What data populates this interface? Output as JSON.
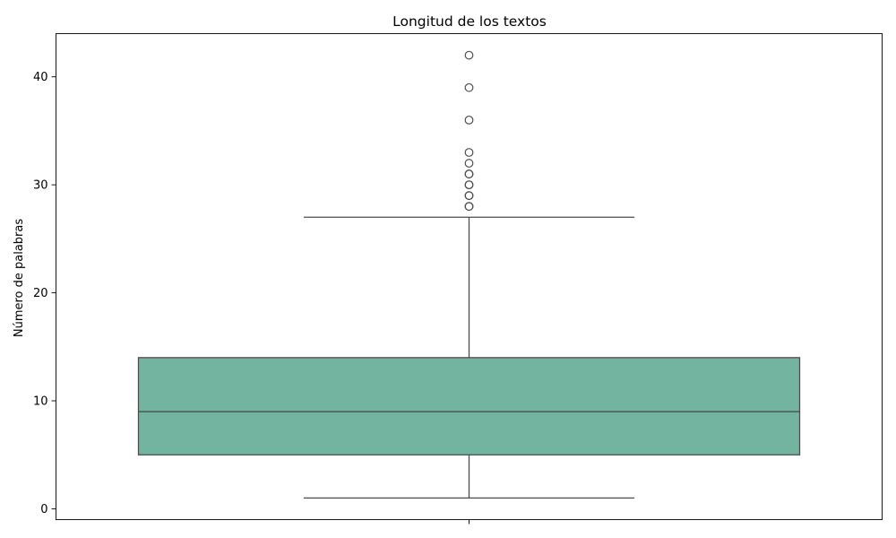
{
  "chart_data": {
    "type": "box",
    "title": "Longitud de los textos",
    "xlabel": "",
    "ylabel": "Número de palabras",
    "ylim": [
      -1,
      44
    ],
    "yticks": [
      0,
      10,
      20,
      30,
      40
    ],
    "grid": false,
    "legend": "none",
    "box_color": "#73b4a0",
    "line_color": "#4d4d4d",
    "box": {
      "whisker_low": 1,
      "q1": 5,
      "median": 9,
      "q3": 14,
      "whisker_high": 27
    },
    "outliers": [
      28,
      28,
      29,
      29,
      30,
      30,
      31,
      31,
      32,
      33,
      36,
      39,
      42
    ]
  }
}
